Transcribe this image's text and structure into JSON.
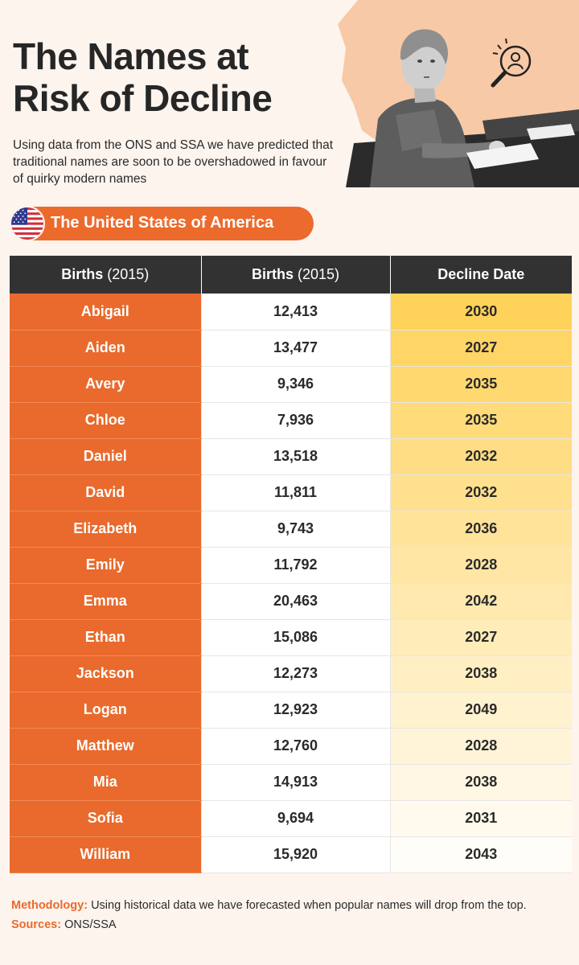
{
  "header": {
    "title": "The Names at Risk of Decline",
    "subtitle": "Using data from the ONS and SSA we have predicted that traditional names are soon to be overshadowed in favour of quirky modern names"
  },
  "country": {
    "label": "The United States of America",
    "flag_icon": "us-flag-icon"
  },
  "table": {
    "headers": {
      "col1": "Births",
      "col1_year": "(2015)",
      "col2": "Births",
      "col2_year": "(2015)",
      "col3": "Decline Date"
    },
    "rows": [
      {
        "name": "Abigail",
        "births": "12,413",
        "decline": "2030"
      },
      {
        "name": "Aiden",
        "births": "13,477",
        "decline": "2027"
      },
      {
        "name": "Avery",
        "births": "9,346",
        "decline": "2035"
      },
      {
        "name": "Chloe",
        "births": "7,936",
        "decline": "2035"
      },
      {
        "name": "Daniel",
        "births": "13,518",
        "decline": "2032"
      },
      {
        "name": "David",
        "births": "11,811",
        "decline": "2032"
      },
      {
        "name": "Elizabeth",
        "births": "9,743",
        "decline": "2036"
      },
      {
        "name": "Emily",
        "births": "11,792",
        "decline": "2028"
      },
      {
        "name": "Emma",
        "births": "20,463",
        "decline": "2042"
      },
      {
        "name": "Ethan",
        "births": "15,086",
        "decline": "2027"
      },
      {
        "name": "Jackson",
        "births": "12,273",
        "decline": "2038"
      },
      {
        "name": "Logan",
        "births": "12,923",
        "decline": "2049"
      },
      {
        "name": "Matthew",
        "births": "12,760",
        "decline": "2028"
      },
      {
        "name": "Mia",
        "births": "14,913",
        "decline": "2038"
      },
      {
        "name": "Sofia",
        "births": "9,694",
        "decline": "2031"
      },
      {
        "name": "William",
        "births": "15,920",
        "decline": "2043"
      }
    ]
  },
  "footer": {
    "methodology_key": "Methodology:",
    "methodology_text": "Using historical data we have forecasted when popular names will drop from the top.",
    "sources_key": "Sources:",
    "sources_text": "ONS/SSA"
  },
  "colors": {
    "accent": "#e96a2c",
    "header_bg": "#323232",
    "page_bg": "#fdf4ee",
    "gradient_top": "#ffd25a",
    "gradient_bottom": "#fffdf8"
  },
  "icons": [
    "us-flag-icon",
    "search-person-icon",
    "woman-photo-illustration",
    "us-map-shape"
  ]
}
